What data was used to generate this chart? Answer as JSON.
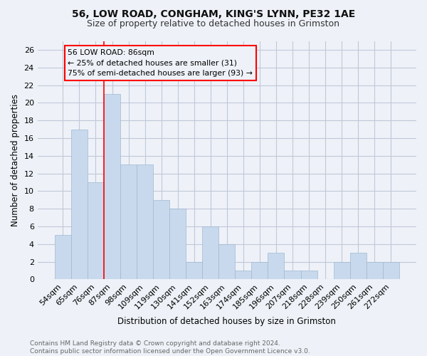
{
  "title1": "56, LOW ROAD, CONGHAM, KING'S LYNN, PE32 1AE",
  "title2": "Size of property relative to detached houses in Grimston",
  "xlabel": "Distribution of detached houses by size in Grimston",
  "ylabel": "Number of detached properties",
  "footer": "Contains HM Land Registry data © Crown copyright and database right 2024.\nContains public sector information licensed under the Open Government Licence v3.0.",
  "categories": [
    "54sqm",
    "65sqm",
    "76sqm",
    "87sqm",
    "98sqm",
    "109sqm",
    "119sqm",
    "130sqm",
    "141sqm",
    "152sqm",
    "163sqm",
    "174sqm",
    "185sqm",
    "196sqm",
    "207sqm",
    "218sqm",
    "228sqm",
    "239sqm",
    "250sqm",
    "261sqm",
    "272sqm"
  ],
  "values": [
    5,
    17,
    11,
    21,
    13,
    13,
    9,
    8,
    2,
    6,
    4,
    1,
    2,
    3,
    1,
    1,
    0,
    2,
    3,
    2,
    2
  ],
  "bar_color": "#c8d9ed",
  "bar_edge_color": "#a0b8d0",
  "grid_color": "#c0c8d8",
  "background_color": "#eef2f8",
  "redline_x": 2.5,
  "annotation_line1": "56 LOW ROAD: 86sqm",
  "annotation_line2": "← 25% of detached houses are smaller (31)",
  "annotation_line3": "75% of semi-detached houses are larger (93) →",
  "ylim": [
    0,
    27
  ],
  "yticks": [
    0,
    2,
    4,
    6,
    8,
    10,
    12,
    14,
    16,
    18,
    20,
    22,
    24,
    26
  ],
  "title1_fontsize": 10,
  "title2_fontsize": 9,
  "ylabel_fontsize": 8.5,
  "xlabel_fontsize": 8.5,
  "tick_fontsize": 8,
  "footer_fontsize": 6.5,
  "footer_color": "#666666"
}
